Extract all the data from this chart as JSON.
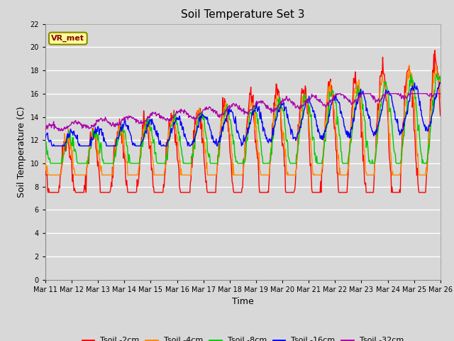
{
  "title": "Soil Temperature Set 3",
  "xlabel": "Time",
  "ylabel": "Soil Temperature (C)",
  "ylim": [
    0,
    22
  ],
  "yticks": [
    0,
    2,
    4,
    6,
    8,
    10,
    12,
    14,
    16,
    18,
    20,
    22
  ],
  "x_labels": [
    "Mar 11",
    "Mar 12",
    "Mar 13",
    "Mar 14",
    "Mar 15",
    "Mar 16",
    "Mar 17",
    "Mar 18",
    "Mar 19",
    "Mar 20",
    "Mar 21",
    "Mar 22",
    "Mar 23",
    "Mar 24",
    "Mar 25",
    "Mar 26"
  ],
  "num_days": 15,
  "background_color": "#d8d8d8",
  "plot_bg_color": "#d8d8d8",
  "grid_color": "#ffffff",
  "colors": {
    "Tsoil -2cm": "#ff0000",
    "Tsoil -4cm": "#ff8800",
    "Tsoil -8cm": "#00cc00",
    "Tsoil -16cm": "#0000ff",
    "Tsoil -32cm": "#aa00aa"
  },
  "annotation_text": "VR_met",
  "annotation_box_color": "#ffff99",
  "annotation_border_color": "#888800"
}
